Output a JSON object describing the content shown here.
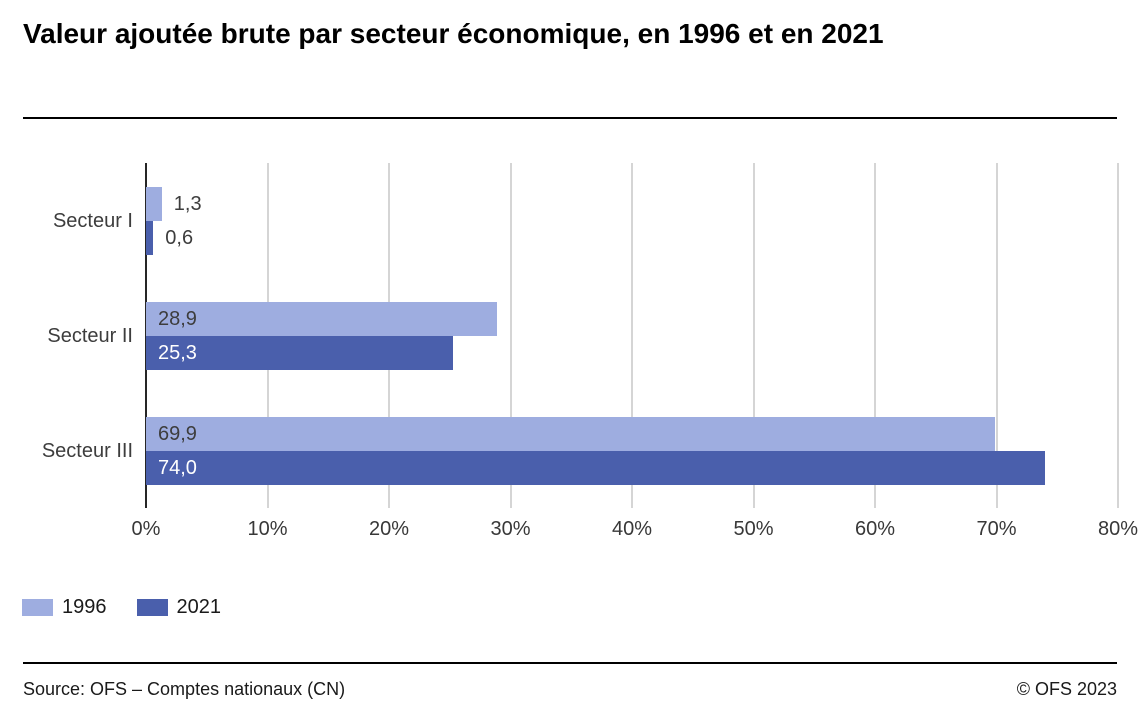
{
  "title": "Valeur ajoutée brute par secteur économique, en 1996 et en 2021",
  "chart_data": {
    "type": "bar",
    "orientation": "horizontal",
    "title": "Valeur ajoutée brute par secteur économique, en 1996 et en 2021",
    "categories": [
      "Secteur I",
      "Secteur II",
      "Secteur III"
    ],
    "series": [
      {
        "name": "1996",
        "color": "#9eade0",
        "values": [
          1.3,
          28.9,
          69.9
        ],
        "value_labels": [
          "1,3",
          "28,9",
          "69,9"
        ],
        "label_color_inside": "#3d3d3d"
      },
      {
        "name": "2021",
        "color": "#4a5fac",
        "values": [
          0.6,
          25.3,
          74.0
        ],
        "value_labels": [
          "0,6",
          "25,3",
          "74,0"
        ],
        "label_color_inside": "#ffffff"
      }
    ],
    "xlim": [
      0,
      80
    ],
    "x_ticks": [
      "0%",
      "10%",
      "20%",
      "30%",
      "40%",
      "50%",
      "60%",
      "70%",
      "80%"
    ],
    "grid": "vertical",
    "legend_position": "bottom-left",
    "axis_color": "#262626",
    "gridline_color": "#d5d5d5",
    "outside_label_color": "#3d3d3d"
  },
  "footer": {
    "source": "Source: OFS – Comptes nationaux (CN)",
    "copyright": "© OFS 2023"
  }
}
